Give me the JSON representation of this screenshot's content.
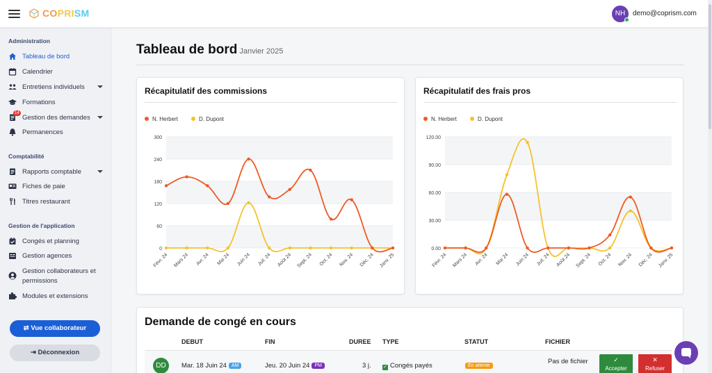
{
  "header": {
    "brand": [
      "CO",
      "PRI",
      "SM"
    ],
    "brand_colors": [
      "#f2994a",
      "#f2c94c",
      "#56ccf2"
    ],
    "user_initials": "NH",
    "user_email": "demo@coprism.com"
  },
  "sidebar": {
    "sections": [
      {
        "title": "Administration",
        "items": [
          {
            "label": "Tableau de bord",
            "icon": "home-icon",
            "active": true
          },
          {
            "label": "Calendrier",
            "icon": "calendar-icon"
          },
          {
            "label": "Entretiens individuels",
            "icon": "people-icon",
            "dropdown": true
          },
          {
            "label": "Formations",
            "icon": "graduation-cap-icon"
          },
          {
            "label": "Gestion des demandes",
            "icon": "document-icon",
            "dropdown": true,
            "badge": "14"
          },
          {
            "label": "Permanences",
            "icon": "bell-icon"
          }
        ]
      },
      {
        "title": "Comptabilité",
        "items": [
          {
            "label": "Rapports comptable",
            "icon": "document-icon",
            "dropdown": true
          },
          {
            "label": "Fiches de paie",
            "icon": "id-card-icon"
          },
          {
            "label": "Titres restaurant",
            "icon": "cutlery-icon"
          }
        ]
      },
      {
        "title": "Gestion de l'application",
        "items": [
          {
            "label": "Congés et planning",
            "icon": "calendar-check-icon"
          },
          {
            "label": "Gestion agences",
            "icon": "building-icon"
          },
          {
            "label": "Gestion collaborateurs et",
            "label2": "permissions",
            "icon": "user-circle-icon"
          },
          {
            "label": "Modules et extensions",
            "icon": "puzzle-icon"
          }
        ]
      }
    ],
    "view_collaborator": "Vue collaborateur",
    "logout": "Déconnexion"
  },
  "page": {
    "title": "Tableau de bord",
    "subtitle": "Janvier 2025"
  },
  "charts_titles": {
    "commissions": "Récapitulatif des commissions",
    "expenses": "Récapitulatif des frais pros"
  },
  "chart_data": [
    {
      "type": "line",
      "title": "Récapitulatif des commissions",
      "categories": [
        "Févr. 24",
        "Mars 24",
        "Avr. 24",
        "Mai 24",
        "Juin 24",
        "Juil. 24",
        "Août 24",
        "Sept. 24",
        "Oct. 24",
        "Nov. 24",
        "Déc. 24",
        "Janv. 25"
      ],
      "series": [
        {
          "name": "N. Herbert",
          "color": "#ee5a24",
          "values": [
            168,
            192,
            168,
            120,
            240,
            138,
            158,
            210,
            78,
            130,
            0,
            0
          ]
        },
        {
          "name": "D. Dupont",
          "color": "#f6c12b",
          "values": [
            0,
            0,
            0,
            0,
            122,
            0,
            0,
            0,
            0,
            0,
            0,
            0
          ]
        }
      ],
      "ylim": [
        0,
        300
      ],
      "yticks": [
        "0",
        "60",
        "120",
        "180",
        "240",
        "300"
      ],
      "grid": true,
      "legend": "top-left"
    },
    {
      "type": "line",
      "title": "Récapitulatif des frais pros",
      "categories": [
        "Févr. 24",
        "Mars 24",
        "Avr. 24",
        "Mai 24",
        "Juin 24",
        "Juil. 24",
        "Août 24",
        "Sept. 24",
        "Oct. 24",
        "Nov. 24",
        "Déc. 24",
        "Janv. 25"
      ],
      "series": [
        {
          "name": "N. Herbert",
          "color": "#ee5a24",
          "values": [
            0,
            0,
            0,
            58,
            0,
            0,
            0,
            0,
            14,
            55,
            0,
            0
          ]
        },
        {
          "name": "D. Dupont",
          "color": "#f6c12b",
          "values": [
            0,
            0,
            0,
            79,
            114,
            0,
            0,
            0,
            0,
            40,
            0,
            0
          ]
        }
      ],
      "ylim": [
        0,
        120
      ],
      "yticks": [
        "0.00",
        "30.00",
        "60.00",
        "90.00",
        "120.00"
      ],
      "grid": true,
      "legend": "top-left"
    }
  ],
  "leave": {
    "title": "Demande de congé en cours",
    "headers": {
      "start": "DEBUT",
      "end": "FIN",
      "duration": "DUREE",
      "type": "TYPE",
      "status": "STATUT",
      "file": "FICHIER"
    },
    "row": {
      "initials": "DD",
      "start": "Mar. 18 Juin 24",
      "start_period": "AM",
      "end": "Jeu. 20 Juin 24",
      "end_period": "PM",
      "duration": "3 j.",
      "type": "Congés payés",
      "status": "En attente",
      "file": "Pas de fichier",
      "accept": "Accepter",
      "refuse": "Refuser"
    }
  }
}
